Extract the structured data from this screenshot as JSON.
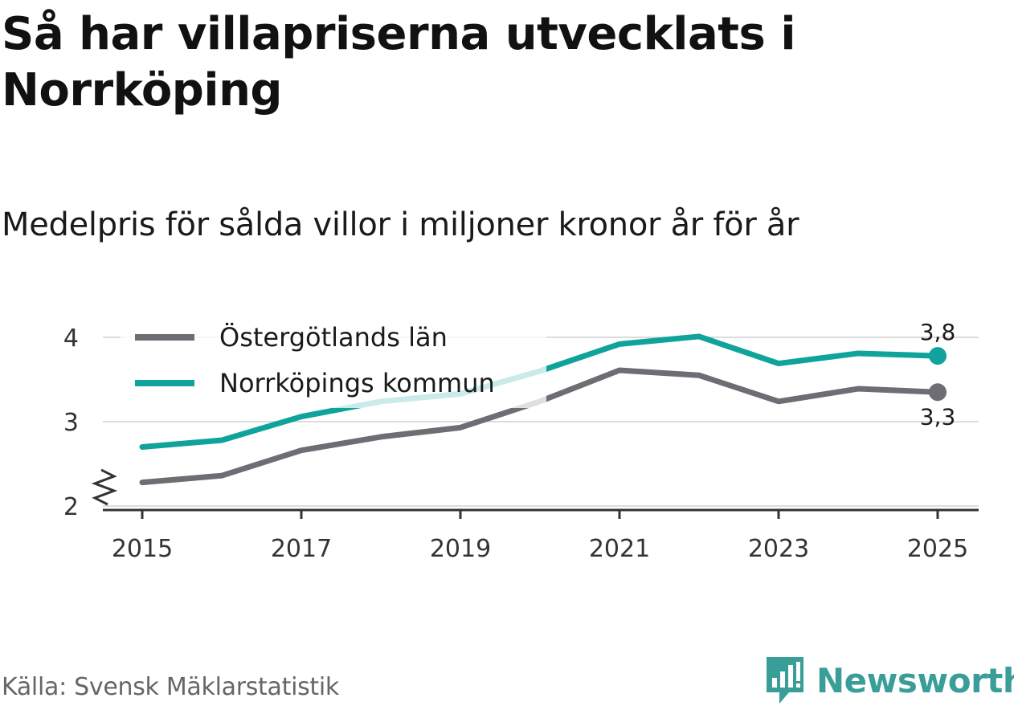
{
  "title": "Så har villapriserna utvecklats i Norrköping",
  "subtitle": "Medelpris för sålda villor i miljoner kronor år för år",
  "source": "Källa: Svensk Mäklarstatistik",
  "brand": {
    "name": "Newsworthy",
    "icon": "newsworthy-logo-icon",
    "color": "#3a9e98"
  },
  "chart_data": {
    "type": "line",
    "title": "Så har villapriserna utvecklats i Norrköping",
    "subtitle": "Medelpris för sålda villor i miljoner kronor år för år",
    "xlabel": "",
    "ylabel": "",
    "x": [
      2015,
      2016,
      2017,
      2018,
      2019,
      2020,
      2021,
      2022,
      2023,
      2024,
      2025
    ],
    "xticks": [
      "2015",
      "2017",
      "2019",
      "2021",
      "2023",
      "2025"
    ],
    "yticks": [
      "2",
      "3",
      "4"
    ],
    "ylim": [
      2,
      4.1
    ],
    "axis_break": true,
    "grid": true,
    "legend_position": "top-left",
    "series": [
      {
        "name": "Östergötlands län",
        "color": "#6e6d74",
        "values": [
          2.28,
          2.36,
          2.66,
          2.82,
          2.93,
          3.24,
          3.61,
          3.55,
          3.24,
          3.39,
          3.35
        ],
        "end_label": "3,3"
      },
      {
        "name": "Norrköpings kommun",
        "color": "#0fa39b",
        "values": [
          2.7,
          2.78,
          3.06,
          3.24,
          3.33,
          3.6,
          3.92,
          4.01,
          3.69,
          3.81,
          3.78
        ],
        "end_label": "3,8"
      }
    ]
  }
}
